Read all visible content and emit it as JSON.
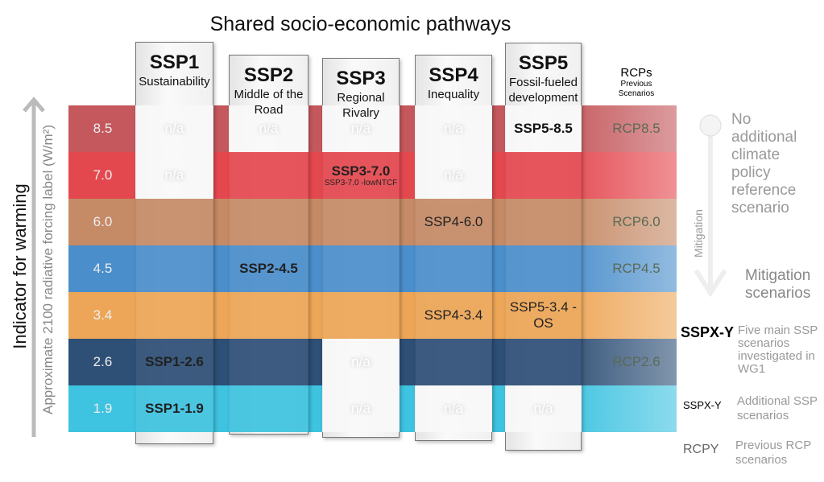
{
  "title": "Shared socio-economic pathways",
  "y_axis": {
    "indicator": "Indicator for warming",
    "label": "Approximate 2100 radiative forcing label (W/m²)"
  },
  "rows": [
    {
      "value": "8.5",
      "color": "#c4585c",
      "rcp": "RCP8.5"
    },
    {
      "value": "7.0",
      "color": "#e4484f",
      "rcp": ""
    },
    {
      "value": "6.0",
      "color": "#c58a66",
      "rcp": "RCP6.0"
    },
    {
      "value": "4.5",
      "color": "#4a8ecb",
      "rcp": "RCP4.5"
    },
    {
      "value": "3.4",
      "color": "#eda657",
      "rcp": ""
    },
    {
      "value": "2.6",
      "color": "#2e4f76",
      "rcp": "RCP2.6"
    },
    {
      "value": "1.9",
      "color": "#3ec3e0",
      "rcp": ""
    }
  ],
  "columns": [
    {
      "name": "SSP1",
      "desc": "Sustainability",
      "cells": [
        {
          "t": "na",
          "text": "n/a"
        },
        {
          "t": "na",
          "text": "n/a"
        },
        {},
        {},
        {},
        {
          "t": "main",
          "text": "SSP1-2.6"
        },
        {
          "t": "main",
          "text": "SSP1-1.9"
        }
      ]
    },
    {
      "name": "SSP2",
      "desc": "Middle of the Road",
      "cells": [
        {
          "t": "na",
          "text": "n/a"
        },
        {},
        {},
        {
          "t": "main",
          "text": "SSP2-4.5"
        },
        {},
        {},
        {}
      ]
    },
    {
      "name": "SSP3",
      "desc": "Regional Rivalry",
      "cells": [
        {
          "t": "na",
          "text": "n/a"
        },
        {
          "t": "main",
          "text": "SSP3-7.0",
          "sub": "SSP3-7.0 -lowNTCF"
        },
        {},
        {},
        {},
        {
          "t": "na",
          "text": "n/a"
        },
        {
          "t": "na",
          "text": "n/a"
        }
      ]
    },
    {
      "name": "SSP4",
      "desc": "Inequality",
      "cells": [
        {
          "t": "na",
          "text": "n/a"
        },
        {
          "t": "na",
          "text": "n/a"
        },
        {
          "t": "add",
          "text": "SSP4-6.0"
        },
        {},
        {
          "t": "add",
          "text": "SSP4-3.4"
        },
        {},
        {
          "t": "na",
          "text": "n/a"
        }
      ]
    },
    {
      "name": "SSP5",
      "desc": "Fossil-fueled development",
      "cells": [
        {
          "t": "mainw",
          "text": "SSP5-8.5"
        },
        {},
        {},
        {},
        {
          "t": "add",
          "text": "SSP5-3.4 -OS"
        },
        {},
        {
          "t": "na",
          "text": "n/a"
        }
      ]
    }
  ],
  "rcp_header": {
    "title": "RCPs",
    "sub": "Previous Scenarios"
  },
  "right": {
    "reference": "No additional climate policy reference scenario",
    "mitigation_axis": "Mitigation",
    "mitigation": "Mitigation scenarios"
  },
  "legend": [
    {
      "key": "SSPX-Y",
      "text": "Five main SSP scenarios investigated in WG1"
    },
    {
      "key": "SSPX-Y",
      "text": "Additional SSP scenarios"
    },
    {
      "key": "RCPY",
      "text": "Previous RCP scenarios"
    }
  ]
}
